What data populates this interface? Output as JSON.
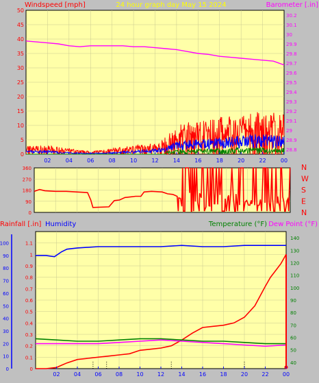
{
  "header": {
    "left_title": "Windspeed [mph]",
    "center_title": "24 hour graph day   May 15 2024",
    "right_title": "Barometer [.in]"
  },
  "colors": {
    "background": "#c0c0c0",
    "plot_bg": "#ffffa8",
    "wind": "#ff0000",
    "gust": "#0000ff",
    "wind_green": "#008000",
    "barometer": "#ff00ff",
    "title_yellow": "#ffff00",
    "rain": "#ff0000",
    "humidity": "#0000ff",
    "temperature": "#008000",
    "dewpoint": "#ff00ff",
    "axis_tick": "#0000ff"
  },
  "hour_ticks": [
    "02",
    "04",
    "06",
    "08",
    "10",
    "12",
    "14",
    "16",
    "18",
    "20",
    "22",
    "00"
  ],
  "direction_labels": [
    "N",
    "W",
    "S",
    "E",
    "N"
  ],
  "bottom_header": {
    "rain_label": "Rainfall [.in]",
    "humidity_label": "Humidity",
    "temp_label": "Temperature (°F)",
    "dew_label": "Dew Point (°F)"
  },
  "chart_data": [
    {
      "type": "line",
      "panel": "wind-barometer",
      "x_range": [
        0,
        24
      ],
      "y_left": {
        "ticks": [
          0,
          5,
          10,
          15,
          20,
          25,
          30,
          35,
          40,
          45,
          50
        ],
        "ylim": [
          0,
          50
        ]
      },
      "y_right": {
        "ticks": [
          "28.8",
          "28.9",
          "29",
          "29.1",
          "29.2",
          "29.3",
          "29.4",
          "29.5",
          "29.6",
          "29.7",
          "29.8",
          "29.9",
          "30",
          "30.1",
          "30.2"
        ],
        "ylim": [
          28.75,
          30.25
        ]
      },
      "series": [
        {
          "name": "Barometer",
          "axis": "right",
          "x": [
            0,
            1,
            2,
            3,
            4,
            5,
            6,
            7,
            8,
            9,
            10,
            11,
            12,
            13,
            14,
            15,
            16,
            17,
            18,
            19,
            20,
            21,
            22,
            23,
            24
          ],
          "values": [
            29.93,
            29.92,
            29.91,
            29.9,
            29.88,
            29.87,
            29.88,
            29.88,
            29.88,
            29.88,
            29.87,
            29.87,
            29.86,
            29.85,
            29.84,
            29.82,
            29.8,
            29.79,
            29.77,
            29.76,
            29.75,
            29.74,
            29.73,
            29.72,
            29.68
          ]
        }
      ],
      "wind_profile": {
        "x": [
          0,
          2,
          4,
          6,
          8,
          10,
          12,
          13,
          14,
          16,
          18,
          20,
          22,
          24
        ],
        "avg": [
          1,
          1,
          0.5,
          0.3,
          0.5,
          1,
          1.5,
          2,
          3.5,
          4,
          4.5,
          5,
          5.5,
          5
        ],
        "peak": [
          3,
          3,
          2,
          1,
          2,
          3,
          4,
          6,
          10,
          12,
          13,
          14,
          15,
          14
        ]
      }
    },
    {
      "type": "line",
      "panel": "wind-direction",
      "x_range": [
        0,
        24
      ],
      "y_left": {
        "ticks": [
          0,
          90,
          180,
          270,
          360
        ],
        "ylim": [
          0,
          360
        ]
      },
      "series": [
        {
          "name": "Direction",
          "x": [
            0,
            0.5,
            1,
            2,
            3,
            4,
            5,
            5.3,
            5.5,
            7,
            7.5,
            8,
            8.5,
            9,
            9.5,
            10,
            10.3,
            11,
            12,
            12.5,
            13,
            13.4
          ],
          "values": [
            170,
            185,
            175,
            170,
            170,
            165,
            160,
            100,
            40,
            45,
            95,
            100,
            120,
            125,
            130,
            130,
            165,
            170,
            165,
            150,
            145,
            130
          ]
        }
      ]
    },
    {
      "type": "line",
      "panel": "rain-humidity-temperature",
      "x_range": [
        0,
        24
      ],
      "y_left": {
        "ticks": [
          "0",
          "0.1",
          "0.2",
          "0.3",
          "0.4",
          "0.5",
          "0.6",
          "0.7",
          "0.8",
          "0.9",
          "1",
          "1.1"
        ],
        "ylim": [
          0,
          1.2
        ]
      },
      "y_humidity": {
        "ticks": [
          0,
          10,
          20,
          30,
          40,
          50,
          60,
          70,
          80,
          90,
          100
        ],
        "ylim": [
          0,
          109
        ]
      },
      "y_right": {
        "ticks": [
          40,
          50,
          60,
          70,
          80,
          90,
          100,
          110,
          120,
          130,
          140
        ],
        "ylim": [
          35,
          145
        ]
      },
      "series": [
        {
          "name": "Humidity",
          "axis": "humidity",
          "x": [
            0,
            1,
            1.8,
            2.5,
            3,
            4,
            6,
            8,
            10,
            12,
            14,
            16,
            18,
            20,
            22,
            24
          ],
          "values": [
            90,
            90,
            89,
            93,
            95,
            96,
            97,
            97,
            97,
            97,
            98,
            97,
            97,
            98,
            98,
            98
          ]
        },
        {
          "name": "Rainfall",
          "axis": "left",
          "x": [
            0,
            1,
            2,
            2.5,
            3,
            4,
            5,
            6,
            7,
            8,
            9,
            10,
            11,
            12,
            13,
            14,
            15,
            16,
            17,
            18,
            19,
            20,
            21,
            22,
            22.5,
            23,
            23.5,
            24
          ],
          "values": [
            0,
            0,
            0.01,
            0.03,
            0.05,
            0.08,
            0.09,
            0.1,
            0.11,
            0.12,
            0.13,
            0.16,
            0.17,
            0.18,
            0.2,
            0.25,
            0.31,
            0.36,
            0.37,
            0.38,
            0.4,
            0.45,
            0.55,
            0.72,
            0.8,
            0.86,
            0.92,
            1.0
          ]
        },
        {
          "name": "Temperature",
          "axis": "right",
          "x": [
            0,
            2,
            4,
            6,
            8,
            10,
            12,
            14,
            16,
            18,
            20,
            22,
            24
          ],
          "values": [
            59,
            58,
            57,
            57,
            58,
            59,
            59,
            58,
            57,
            57,
            56,
            55,
            55
          ]
        },
        {
          "name": "Dew Point",
          "axis": "right",
          "x": [
            0,
            2,
            4,
            6,
            8,
            10,
            12,
            14,
            16,
            18,
            20,
            22,
            24
          ],
          "values": [
            55,
            55,
            55,
            55,
            56,
            57,
            58,
            57,
            56,
            55,
            54,
            53,
            54
          ]
        }
      ]
    }
  ]
}
